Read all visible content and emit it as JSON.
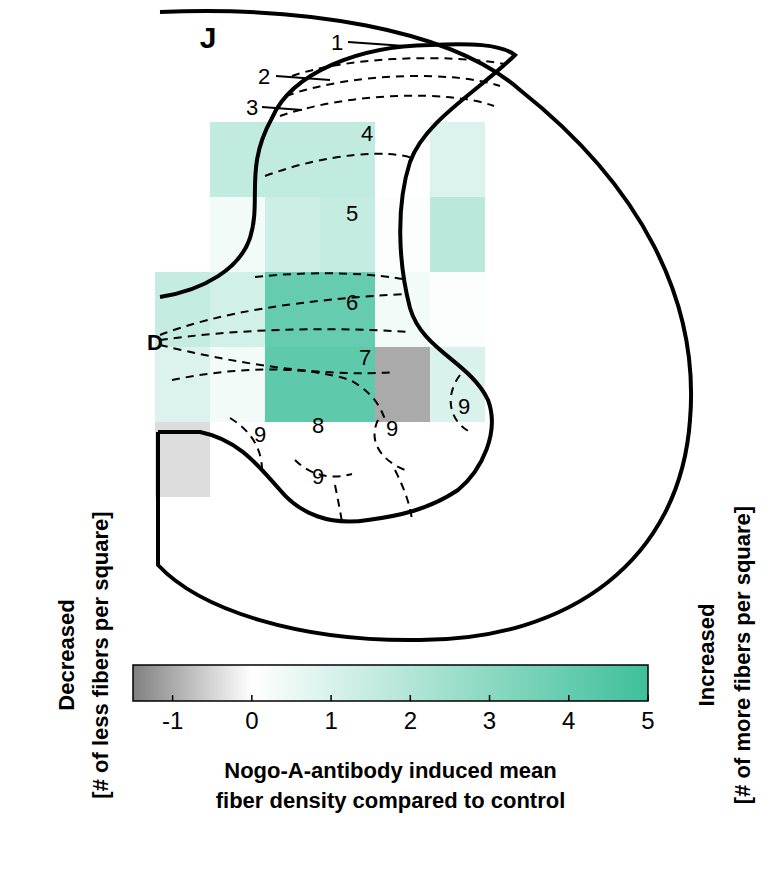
{
  "chart_data": {
    "type": "heatmap",
    "panel_label": "J",
    "cells": [
      [
        null,
        1.6,
        1.6,
        1.6,
        null,
        0.9
      ],
      [
        null,
        0.3,
        1.3,
        1.5,
        0.1,
        1.8
      ],
      [
        1.5,
        1.2,
        4.0,
        4.0,
        0.3,
        0.1
      ],
      [
        0.9,
        0.3,
        4.2,
        4.2,
        -1.0,
        1.0
      ],
      [
        -0.4,
        null,
        null,
        null,
        null,
        null
      ]
    ],
    "annotations": [
      "1",
      "2",
      "3",
      "4",
      "5",
      "6",
      "7",
      "8",
      "9",
      "9",
      "9",
      "9",
      "D"
    ],
    "colorbar": {
      "range": [
        -1.5,
        5
      ],
      "ticks": [
        -1,
        0,
        1,
        2,
        3,
        4,
        5
      ],
      "color_stops": [
        {
          "value": -1.5,
          "color": "#808080"
        },
        {
          "value": 0,
          "color": "#ffffff"
        },
        {
          "value": 5,
          "color": "#3fbf9b"
        }
      ],
      "label": [
        "Nogo-A-antibody induced mean",
        "fiber density compared to control"
      ]
    },
    "left_label": [
      "Decreased",
      "[# of less fibers per square]"
    ],
    "right_label": [
      "Increased",
      "[# of more fibers per square]"
    ]
  }
}
